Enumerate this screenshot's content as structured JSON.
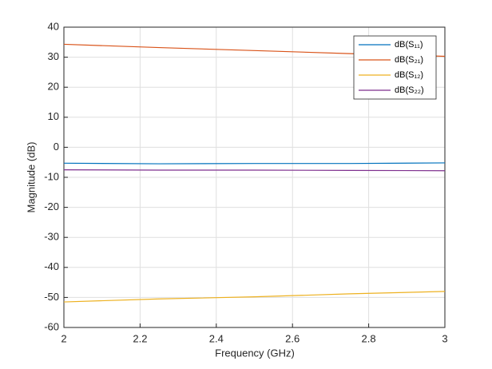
{
  "chart_data": {
    "type": "line",
    "xlabel": "Frequency (GHz)",
    "ylabel": "Magnitude (dB)",
    "x": [
      2,
      2.25,
      2.5,
      2.75,
      3
    ],
    "series": [
      {
        "name": "dB(S₁₁)",
        "color": "#0072bd",
        "values": [
          -5.3,
          -5.5,
          -5.4,
          -5.4,
          -5.2
        ]
      },
      {
        "name": "dB(S₂₁)",
        "color": "#d95319",
        "values": [
          34.3,
          33.2,
          32.2,
          31.2,
          30.3
        ]
      },
      {
        "name": "dB(S₁₂)",
        "color": "#edb120",
        "values": [
          -51.5,
          -50.5,
          -49.8,
          -48.8,
          -48
        ]
      },
      {
        "name": "dB(S₂₂)",
        "color": "#7e2f8e",
        "values": [
          -7.5,
          -7.6,
          -7.6,
          -7.7,
          -7.8
        ]
      }
    ],
    "xlim": [
      2,
      3
    ],
    "xticks": [
      2,
      2.2,
      2.4,
      2.6,
      2.8,
      3
    ],
    "ylim": [
      -60,
      40
    ],
    "yticks": [
      -60,
      -50,
      -40,
      -30,
      -20,
      -10,
      0,
      10,
      20,
      30,
      40
    ],
    "grid": true,
    "legend": "northeast"
  }
}
